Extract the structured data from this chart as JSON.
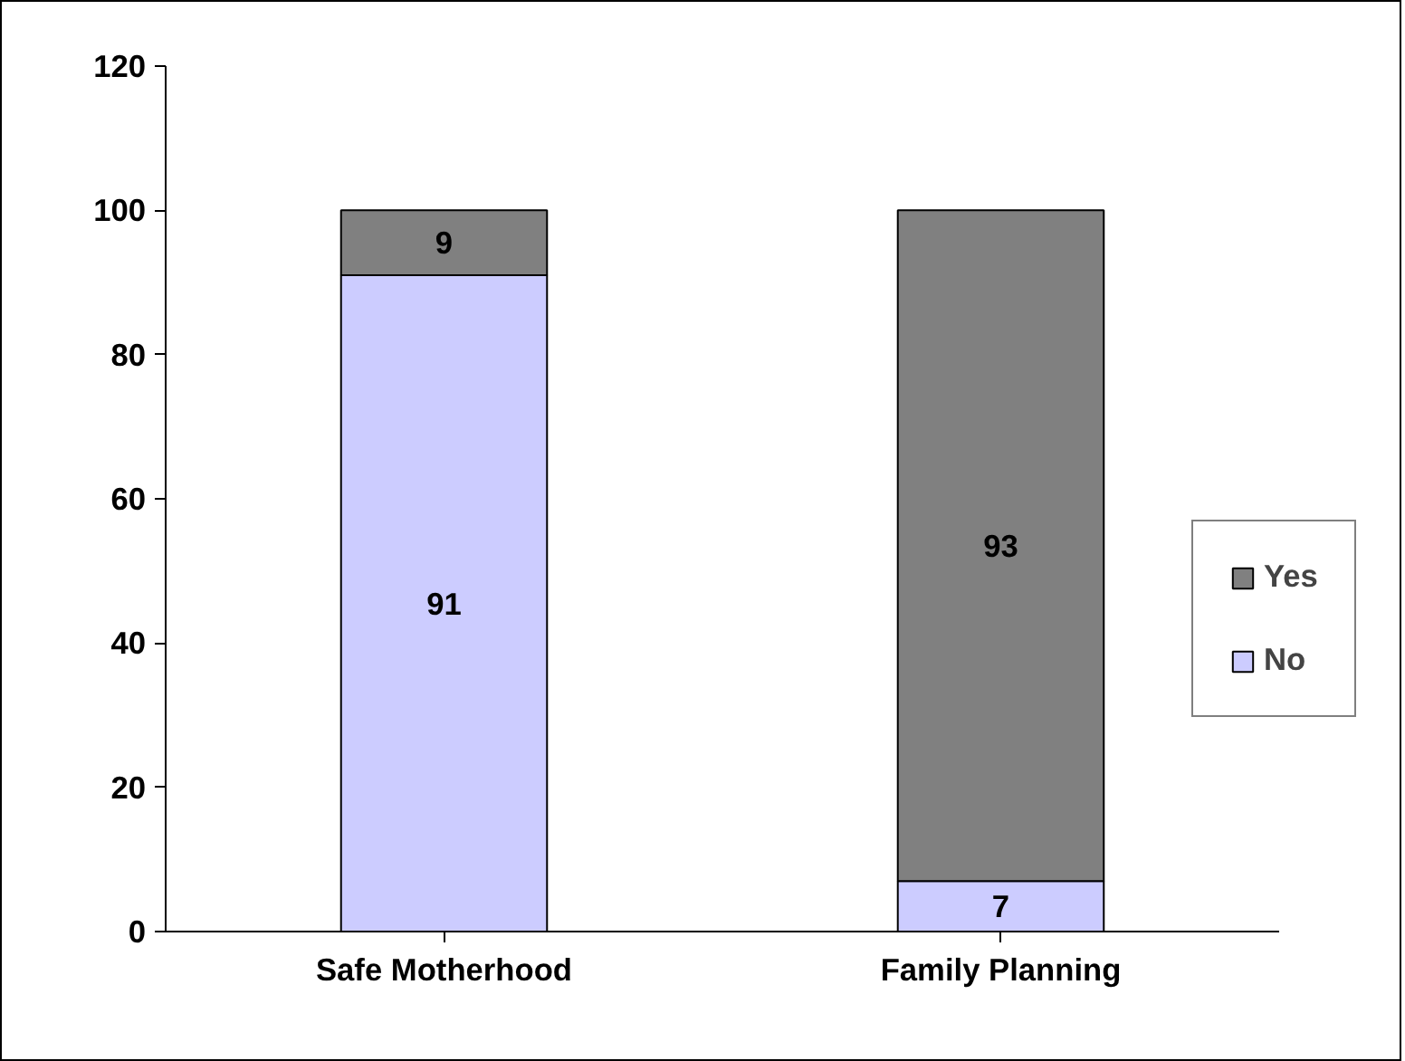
{
  "chart_data": {
    "type": "bar",
    "stacked": true,
    "categories": [
      "Safe Motherhood",
      "Family Planning"
    ],
    "series": [
      {
        "name": "No",
        "color": "#ccccff",
        "values": [
          91,
          7
        ]
      },
      {
        "name": "Yes",
        "color": "#808080",
        "values": [
          9,
          93
        ]
      }
    ],
    "ylim": [
      0,
      120
    ],
    "yticks": [
      0,
      20,
      40,
      60,
      80,
      100,
      120
    ],
    "grid": false,
    "legend": "right",
    "data_labels": true
  }
}
